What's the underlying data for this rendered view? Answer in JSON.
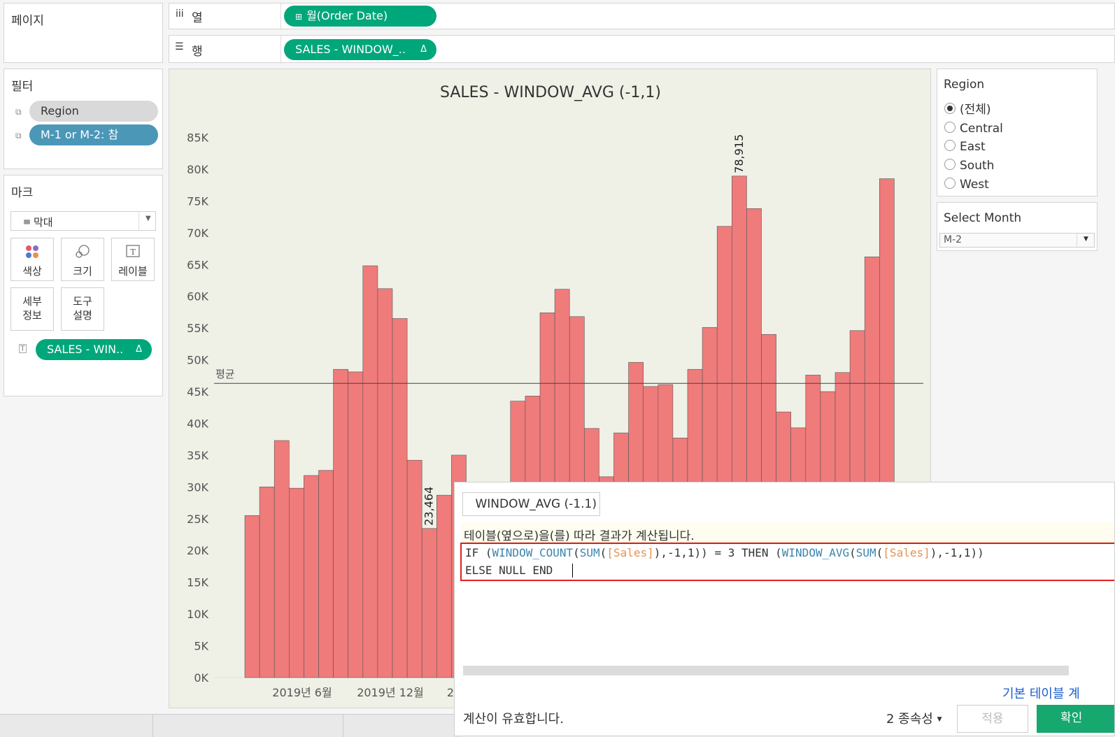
{
  "pages_panel": {
    "title": "페이지"
  },
  "columns_shelf": {
    "icon": "iii",
    "label": "열",
    "pill": "월(Order Date)",
    "pill_icon": "⊞"
  },
  "rows_shelf": {
    "icon": "☰",
    "label": "행",
    "pill": "SALES - WINDOW_..",
    "pill_delta": "Δ"
  },
  "filters_panel": {
    "title": "필터",
    "items": [
      "Region",
      "M-1 or M-2: 참"
    ]
  },
  "marks_panel": {
    "title": "마크",
    "mark_type": "막대",
    "buttons": [
      {
        "label": "색상"
      },
      {
        "label": "크기"
      },
      {
        "label": "레이블"
      },
      {
        "label": "세부\n정보",
        "line1": "세부",
        "line2": "정보"
      },
      {
        "label": "도구\n설명",
        "line1": "도구",
        "line2": "설명"
      }
    ],
    "label_pill": "SALES - WIN..",
    "label_pill_delta": "Δ"
  },
  "region_filter": {
    "title": "Region",
    "options": [
      "(전체)",
      "Central",
      "East",
      "South",
      "West"
    ],
    "selected": "(전체)"
  },
  "month_param": {
    "title": "Select Month",
    "value": "M-2"
  },
  "chart_data": {
    "type": "bar",
    "title": "SALES - WINDOW_AVG (-1,1)",
    "y_ticks": [
      "0K",
      "5K",
      "10K",
      "15K",
      "20K",
      "25K",
      "30K",
      "35K",
      "40K",
      "45K",
      "50K",
      "55K",
      "60K",
      "65K",
      "70K",
      "75K",
      "80K",
      "85K"
    ],
    "ylim": [
      0,
      87000
    ],
    "x_tick_labels": [
      "2019년 6월",
      "2019년 12월",
      "2"
    ],
    "values": [
      25500,
      30000,
      37300,
      29800,
      31800,
      32600,
      48500,
      48100,
      64800,
      61200,
      56500,
      34200,
      23464,
      28700,
      35000,
      null,
      null,
      null,
      43500,
      44300,
      57400,
      61100,
      56800,
      39200,
      31600,
      38500,
      49600,
      45800,
      46100,
      37700,
      48500,
      55100,
      71000,
      78915,
      73800,
      54000,
      41800,
      39300,
      47600,
      45000,
      48000,
      54600,
      66200,
      78500
    ],
    "data_labels": [
      {
        "index": 12,
        "text": "23,464"
      },
      {
        "index": 33,
        "text": "78,915"
      }
    ],
    "reference_line": {
      "label": "평균",
      "value": 46300
    },
    "bar_color": "#f07b7b"
  },
  "calc_dialog": {
    "name": "WINDOW_AVG (-1.1)",
    "info": "테이블(옆으로)을(를) 따라 결과가 계산됩니다.",
    "formula_line1_tokens": [
      {
        "t": "IF (",
        "c": ""
      },
      {
        "t": "WINDOW_COUNT",
        "c": "fn"
      },
      {
        "t": "(",
        "c": ""
      },
      {
        "t": "SUM",
        "c": "fn"
      },
      {
        "t": "(",
        "c": ""
      },
      {
        "t": "[Sales]",
        "c": "fld"
      },
      {
        "t": "),-1,1)) = 3 THEN (",
        "c": ""
      },
      {
        "t": "WINDOW_AVG",
        "c": "fn"
      },
      {
        "t": "(",
        "c": ""
      },
      {
        "t": "SUM",
        "c": "fn"
      },
      {
        "t": "(",
        "c": ""
      },
      {
        "t": "[Sales]",
        "c": "fld"
      },
      {
        "t": "),-1,1))",
        "c": ""
      }
    ],
    "formula_line2": "ELSE NULL END",
    "default_table_link": "기본 테이블 계",
    "status": "계산이 유효합니다.",
    "dependencies": "2 종속성",
    "apply_button": "적용",
    "ok_button": "확인"
  }
}
